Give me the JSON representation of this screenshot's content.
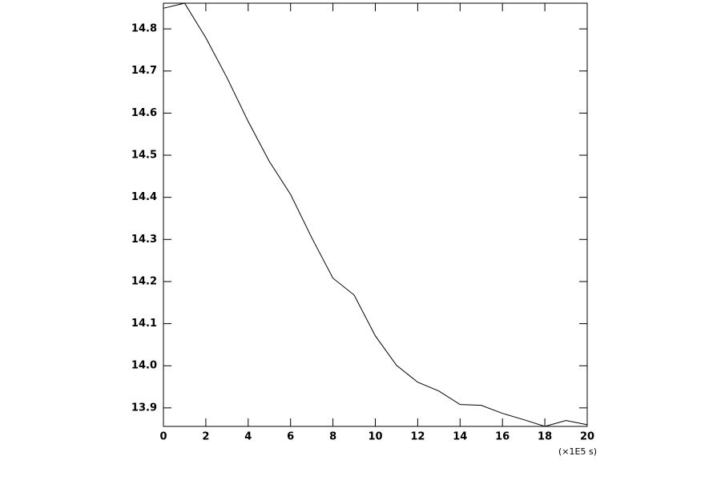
{
  "chart_data": {
    "type": "line",
    "x": [
      0,
      1,
      2,
      3,
      4,
      5,
      6,
      7,
      8,
      9,
      10,
      11,
      12,
      13,
      14,
      15,
      16,
      17,
      18,
      19,
      20
    ],
    "series": [
      {
        "color": "#000000",
        "values": [
          14.849,
          14.861,
          14.779,
          14.684,
          14.58,
          14.485,
          14.407,
          14.304,
          14.208,
          14.168,
          14.071,
          14.001,
          13.961,
          13.94,
          13.908,
          13.906,
          13.887,
          13.872,
          13.856,
          13.87,
          13.86
        ]
      }
    ],
    "xlim": [
      0,
      20
    ],
    "xticks": [
      0,
      2,
      4,
      6,
      8,
      10,
      12,
      14,
      16,
      18,
      20
    ],
    "ylim": [
      13.856,
      14.861
    ],
    "yticks": [
      13.9,
      {
        "value": 14,
        "label": "14.0"
      },
      14.1,
      14.2,
      14.3,
      14.4,
      14.5,
      14.6,
      14.7,
      14.8
    ],
    "x_unit_label": "(×1E5 s)"
  }
}
